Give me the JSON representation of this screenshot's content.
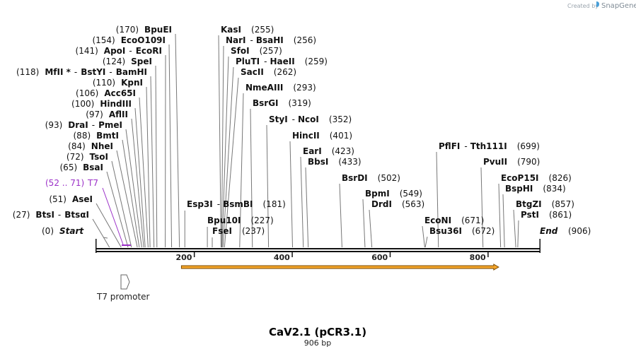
{
  "map": {
    "title": "CaV2.1 (pCR3.1)",
    "length_label": "906 bp",
    "length_bp": 906,
    "credit_text": "Created by",
    "credit_brand": "SnapGene",
    "axis_ticks": [
      {
        "bp": 200,
        "label": "200"
      },
      {
        "bp": 400,
        "label": "400"
      },
      {
        "bp": 600,
        "label": "600"
      },
      {
        "bp": 800,
        "label": "800"
      }
    ],
    "start_label": "Start",
    "start_pos": "(0)",
    "end_label": "End",
    "end_pos": "(906)",
    "colors": {
      "backbone": "#111111",
      "t7_site": "#9b30c8",
      "orf_fill": "#f5a52a",
      "orf_edge": "#7a4a00",
      "promoter": "#666666",
      "credit_blue": "#4a9fd8"
    }
  },
  "features": {
    "t7_site": {
      "pos": "(52 .. 71)",
      "name": "T7",
      "start_bp": 52,
      "end_bp": 71
    },
    "promoter": {
      "name": "T7 promoter",
      "bp": 52
    },
    "orf": {
      "start_bp": 174,
      "end_bp": 822
    }
  },
  "left_sites": [
    {
      "pos": "(170)",
      "names": [
        "BpuEI"
      ],
      "bp": 170
    },
    {
      "pos": "(154)",
      "names": [
        "EcoO109I"
      ],
      "bp": 154
    },
    {
      "pos": "(141)",
      "names": [
        "ApoI",
        "EcoRI"
      ],
      "bp": 141
    },
    {
      "pos": "(124)",
      "names": [
        "SpeI"
      ],
      "bp": 124
    },
    {
      "pos": "(118)",
      "names": [
        "MfII *",
        "BstYI",
        "BamHI"
      ],
      "bp": 118
    },
    {
      "pos": "(110)",
      "names": [
        "KpnI"
      ],
      "bp": 110
    },
    {
      "pos": "(106)",
      "names": [
        "Acc65I"
      ],
      "bp": 106
    },
    {
      "pos": "(100)",
      "names": [
        "HindIII"
      ],
      "bp": 100
    },
    {
      "pos": "(97)",
      "names": [
        "AflII"
      ],
      "bp": 97
    },
    {
      "pos": "(93)",
      "names": [
        "DraI",
        "PmeI"
      ],
      "bp": 93
    },
    {
      "pos": "(88)",
      "names": [
        "BmtI"
      ],
      "bp": 88
    },
    {
      "pos": "(84)",
      "names": [
        "NheI"
      ],
      "bp": 84
    },
    {
      "pos": "(72)",
      "names": [
        "TsoI"
      ],
      "bp": 72
    },
    {
      "pos": "(65)",
      "names": [
        "BsaI"
      ],
      "bp": 65
    },
    {
      "pos": "(51)",
      "names": [
        "AseI"
      ],
      "bp": 51
    },
    {
      "pos": "(27)",
      "names": [
        "BtsI",
        "BtsαI"
      ],
      "bp": 27
    }
  ],
  "right_sites": [
    {
      "names": [
        "KasI"
      ],
      "pos": "(255)",
      "bp": 255
    },
    {
      "names": [
        "NarI",
        "BsaHI"
      ],
      "pos": "(256)",
      "bp": 256
    },
    {
      "names": [
        "SfoI"
      ],
      "pos": "(257)",
      "bp": 257
    },
    {
      "names": [
        "PluTI",
        "HaeII"
      ],
      "pos": "(259)",
      "bp": 259
    },
    {
      "names": [
        "SacII"
      ],
      "pos": "(262)",
      "bp": 262
    },
    {
      "names": [
        "NmeAIII"
      ],
      "pos": "(293)",
      "bp": 293
    },
    {
      "names": [
        "BsrGI"
      ],
      "pos": "(319)",
      "bp": 319
    },
    {
      "names": [
        "StyI",
        "NcoI"
      ],
      "pos": "(352)",
      "bp": 352
    },
    {
      "names": [
        "HincII"
      ],
      "pos": "(401)",
      "bp": 401
    },
    {
      "names": [
        "EarI"
      ],
      "pos": "(423)",
      "bp": 423
    },
    {
      "names": [
        "BbsI"
      ],
      "pos": "(433)",
      "bp": 433
    },
    {
      "names": [
        "BsrDI"
      ],
      "pos": "(502)",
      "bp": 502
    },
    {
      "names": [
        "BpmI"
      ],
      "pos": "(549)",
      "bp": 549
    },
    {
      "names": [
        "DrdI"
      ],
      "pos": "(563)",
      "bp": 563
    },
    {
      "names": [
        "PflFI",
        "Tth111I"
      ],
      "pos": "(699)",
      "bp": 699
    },
    {
      "names": [
        "PvuII"
      ],
      "pos": "(790)",
      "bp": 790
    },
    {
      "names": [
        "EcoP15I"
      ],
      "pos": "(826)",
      "bp": 826
    },
    {
      "names": [
        "BspHI"
      ],
      "pos": "(834)",
      "bp": 834
    },
    {
      "names": [
        "BtgZI"
      ],
      "pos": "(857)",
      "bp": 857
    },
    {
      "names": [
        "PstI"
      ],
      "pos": "(861)",
      "bp": 861
    },
    {
      "names": [
        "Esp3I",
        "BsmBI"
      ],
      "pos": "(181)",
      "bp": 181
    },
    {
      "names": [
        "Bpu10I"
      ],
      "pos": "(227)",
      "bp": 227
    },
    {
      "names": [
        "FseI"
      ],
      "pos": "(237)",
      "bp": 237
    },
    {
      "names": [
        "EcoNI"
      ],
      "pos": "(671)",
      "bp": 671
    },
    {
      "names": [
        "Bsu36I"
      ],
      "pos": "(672)",
      "bp": 672
    }
  ]
}
